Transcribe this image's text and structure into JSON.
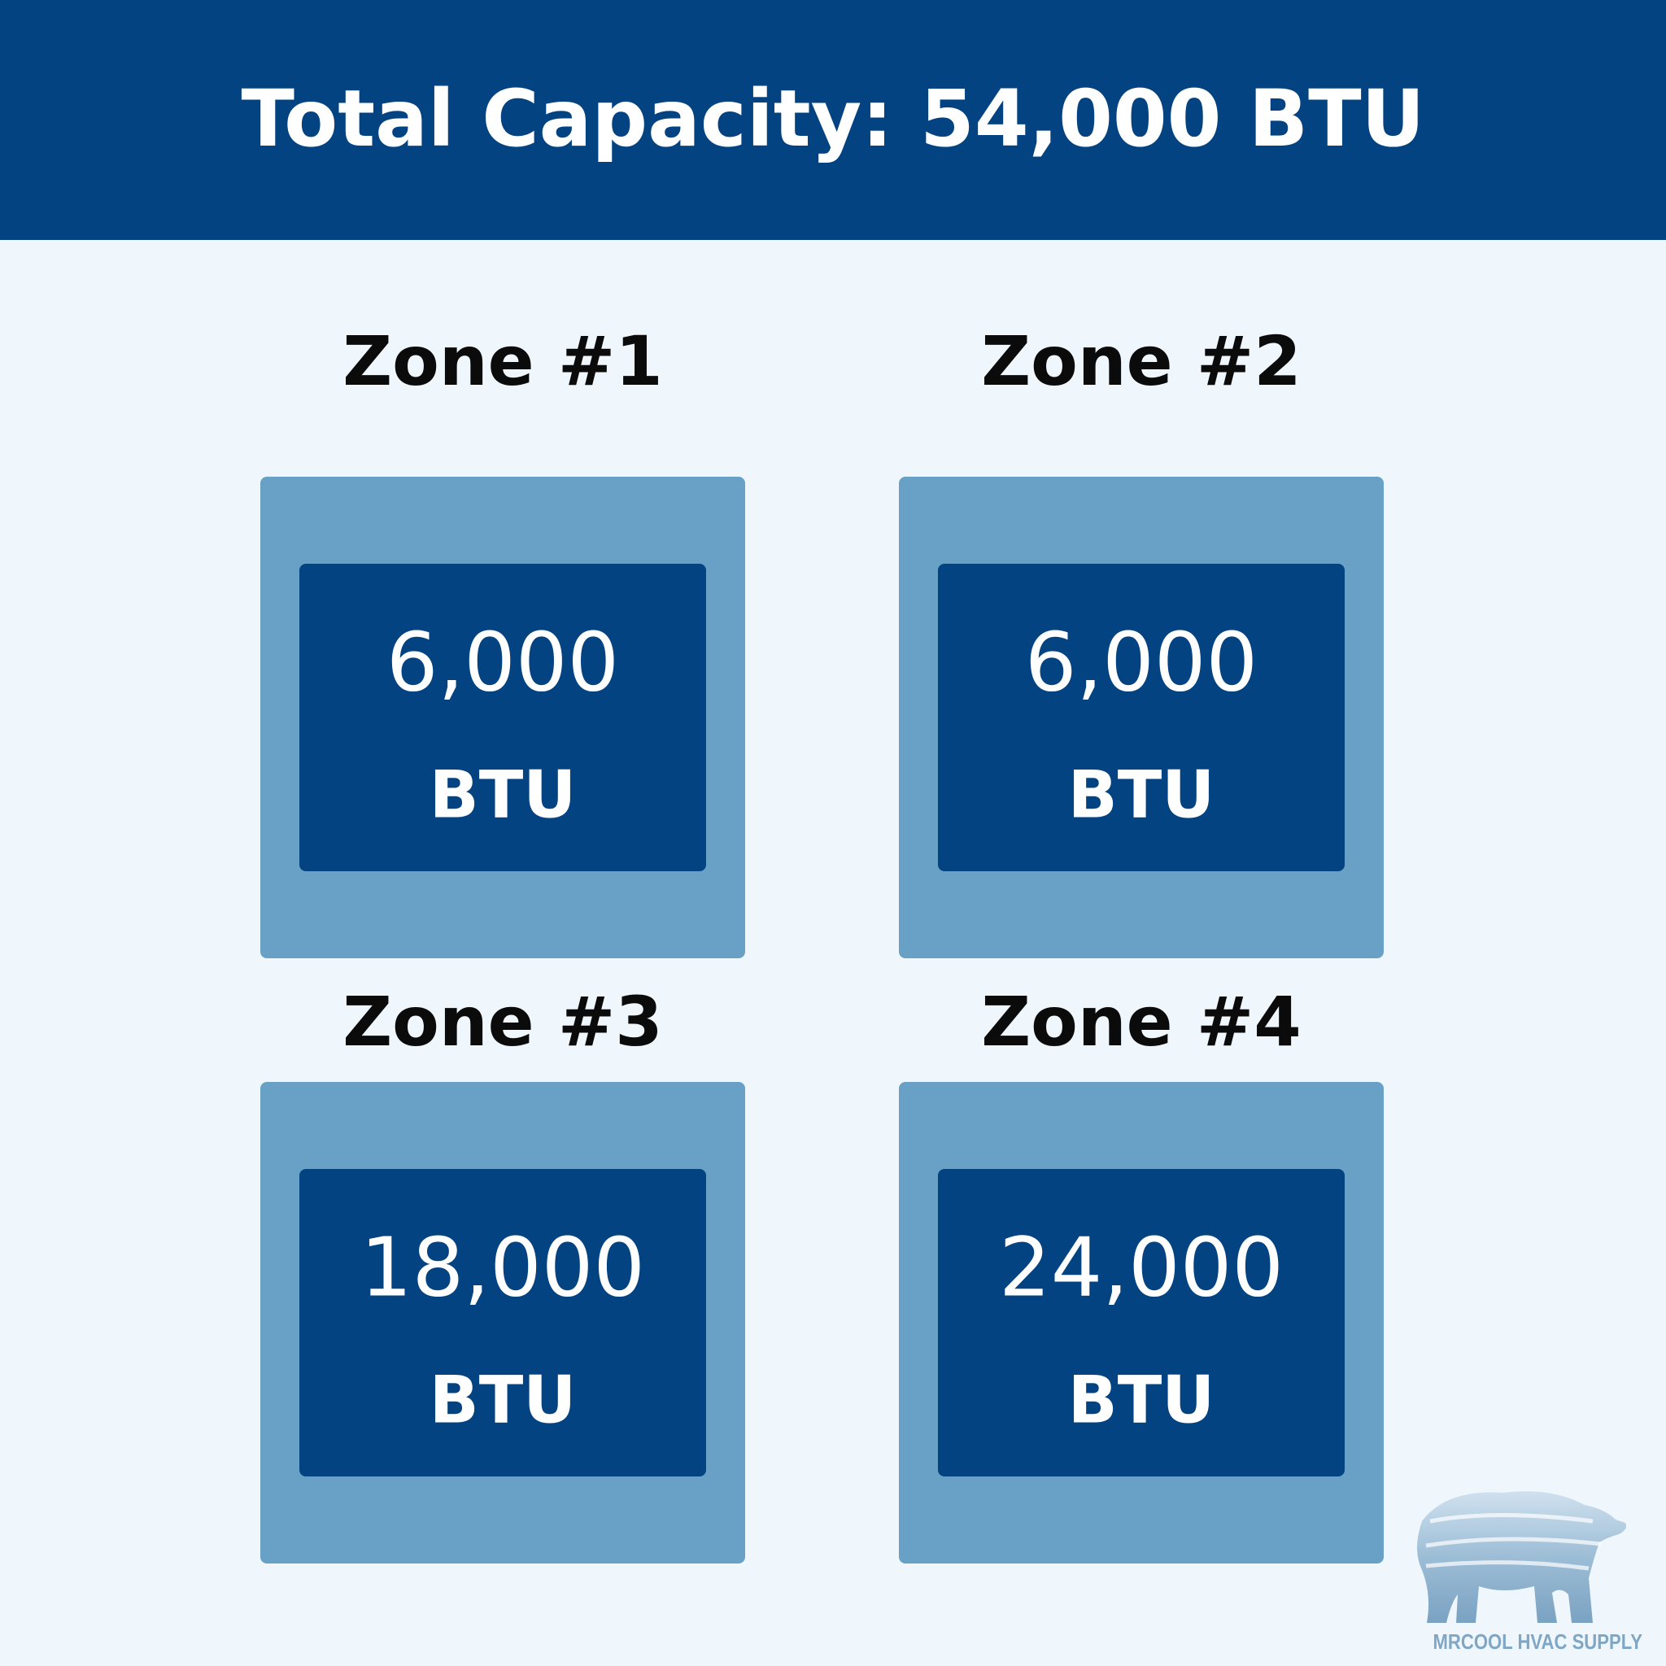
{
  "header": {
    "title": "Total Capacity: 54,000 BTU"
  },
  "zones": [
    {
      "label": "Zone #1",
      "value": "6,000",
      "unit": "BTU"
    },
    {
      "label": "Zone #2",
      "value": "6,000",
      "unit": "BTU"
    },
    {
      "label": "Zone #3",
      "value": "18,000",
      "unit": "BTU"
    },
    {
      "label": "Zone #4",
      "value": "24,000",
      "unit": "BTU"
    }
  ],
  "logo": {
    "text": "MRCOOL HVAC SUPPLY"
  }
}
